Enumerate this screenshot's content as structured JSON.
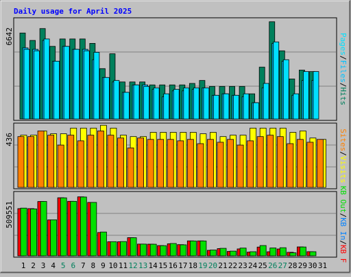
{
  "title": "Daily usage for April 2025",
  "days": [
    "1",
    "2",
    "3",
    "4",
    "5",
    "6",
    "7",
    "8",
    "9",
    "10",
    "11",
    "12",
    "13",
    "14",
    "15",
    "16",
    "17",
    "18",
    "19",
    "20",
    "21",
    "22",
    "23",
    "24",
    "25",
    "26",
    "27",
    "28",
    "29",
    "30",
    "31"
  ],
  "weekend_days": [
    5,
    6,
    12,
    13,
    19,
    20,
    26,
    27
  ],
  "colors": {
    "hits": "#00805c",
    "files": "#00c0ff",
    "pages": "#00e0ff",
    "visits": "#ffff00",
    "sites": "#ff8000",
    "kb_in": "#ff0000",
    "kb_out": "#00e000",
    "title": "#0000ff",
    "weekend": "#00805c",
    "panel": "#c0c0c0",
    "frame": "#000000"
  },
  "chart_data": [
    {
      "type": "bar",
      "panel": "hits_files_pages",
      "ymax_label": "6642",
      "ylim": [
        0,
        6642
      ],
      "legend": [
        {
          "key": "hits",
          "label": "Hits"
        },
        {
          "key": "files",
          "label": "Files"
        },
        {
          "key": "pages",
          "label": "Pages"
        }
      ],
      "legend_separator": "/",
      "categories": [
        "1",
        "2",
        "3",
        "4",
        "5",
        "6",
        "7",
        "8",
        "9",
        "10",
        "11",
        "12",
        "13",
        "14",
        "15",
        "16",
        "17",
        "18",
        "19",
        "20",
        "21",
        "22",
        "23",
        "24",
        "25",
        "26",
        "27",
        "28",
        "29",
        "30",
        "31"
      ],
      "series": [
        {
          "name": "Hits",
          "values": [
            5800,
            5300,
            6100,
            4900,
            5400,
            5400,
            5400,
            5100,
            3400,
            4400,
            2500,
            2500,
            2500,
            2300,
            2300,
            2300,
            2300,
            2400,
            2600,
            2200,
            2200,
            2200,
            2200,
            1700,
            3500,
            6560,
            4600,
            2700,
            3300,
            3200,
            null
          ]
        },
        {
          "name": "Files",
          "values": [
            4800,
            4700,
            5300,
            3900,
            4900,
            4700,
            4700,
            4000,
            2800,
            2500,
            1800,
            2300,
            2300,
            2000,
            1500,
            1900,
            1900,
            2000,
            2100,
            1600,
            1700,
            1600,
            1500,
            1100,
            2100,
            5100,
            3900,
            1600,
            2600,
            2600,
            null
          ]
        },
        {
          "name": "Pages",
          "values": [
            4700,
            4600,
            5400,
            3900,
            4900,
            4700,
            4600,
            4500,
            2800,
            2600,
            1800,
            2300,
            2200,
            2100,
            1700,
            2000,
            2100,
            2100,
            2100,
            1600,
            1700,
            1600,
            1700,
            1100,
            2400,
            5200,
            4000,
            1700,
            3200,
            3200,
            null
          ]
        }
      ]
    },
    {
      "type": "bar",
      "panel": "visits_sites",
      "ymax_label": "436",
      "ylim": [
        0,
        436
      ],
      "legend": [
        {
          "key": "visits",
          "label": "Visits"
        },
        {
          "key": "sites",
          "label": "Sites"
        }
      ],
      "legend_separator": "/",
      "categories": [
        "1",
        "2",
        "3",
        "4",
        "5",
        "6",
        "7",
        "8",
        "9",
        "10",
        "11",
        "12",
        "13",
        "14",
        "15",
        "16",
        "17",
        "18",
        "19",
        "20",
        "21",
        "22",
        "23",
        "24",
        "25",
        "26",
        "27",
        "28",
        "29",
        "30",
        "31"
      ],
      "series": [
        {
          "name": "Visits",
          "values": [
            370,
            370,
            400,
            380,
            380,
            420,
            420,
            420,
            440,
            420,
            370,
            360,
            360,
            390,
            390,
            390,
            390,
            390,
            380,
            390,
            360,
            370,
            370,
            420,
            420,
            420,
            420,
            390,
            400,
            350,
            340
          ]
        },
        {
          "name": "Sites",
          "values": [
            360,
            360,
            400,
            370,
            300,
            370,
            330,
            370,
            400,
            370,
            350,
            280,
            350,
            340,
            340,
            340,
            330,
            340,
            310,
            340,
            320,
            340,
            300,
            330,
            360,
            370,
            360,
            310,
            340,
            320,
            340
          ]
        }
      ]
    },
    {
      "type": "bar",
      "panel": "kbytes",
      "ymax_label": "509551",
      "ylim": [
        0,
        509551
      ],
      "legend": [
        {
          "key": "kb_in",
          "label": "KB F"
        },
        {
          "key": "kb_in",
          "label": "KB In"
        },
        {
          "key": "kb_out",
          "label": "KB Out"
        }
      ],
      "legend_separator": "/",
      "categories": [
        "1",
        "2",
        "3",
        "4",
        "5",
        "6",
        "7",
        "8",
        "9",
        "10",
        "11",
        "12",
        "13",
        "14",
        "15",
        "16",
        "17",
        "18",
        "19",
        "20",
        "21",
        "22",
        "23",
        "24",
        "25",
        "26",
        "27",
        "28",
        "29",
        "30",
        "31"
      ],
      "series": [
        {
          "name": "KB F",
          "values": [
            390000,
            390000,
            449000,
            297000,
            480000,
            451000,
            488000,
            442000,
            193000,
            116000,
            116000,
            150000,
            97000,
            96000,
            84000,
            99000,
            92000,
            123000,
            123000,
            45000,
            59000,
            36000,
            57000,
            30000,
            72000,
            33000,
            56000,
            29000,
            73000,
            34000,
            null
          ]
        },
        {
          "name": "KB In",
          "values": [
            390000,
            390000,
            449000,
            297000,
            480000,
            451000,
            488000,
            442000,
            193000,
            116000,
            116000,
            150000,
            97000,
            96000,
            84000,
            99000,
            92000,
            123000,
            123000,
            45000,
            59000,
            36000,
            57000,
            30000,
            72000,
            33000,
            56000,
            29000,
            73000,
            34000,
            null
          ]
        },
        {
          "name": "KB Out",
          "values": [
            395000,
            388000,
            450000,
            298000,
            480000,
            451000,
            487000,
            442000,
            197000,
            117000,
            118000,
            150000,
            97000,
            96000,
            84000,
            102000,
            91000,
            123000,
            123000,
            48000,
            62000,
            39000,
            64000,
            34000,
            85000,
            65000,
            67000,
            25000,
            73000,
            34000,
            null
          ]
        }
      ]
    }
  ]
}
